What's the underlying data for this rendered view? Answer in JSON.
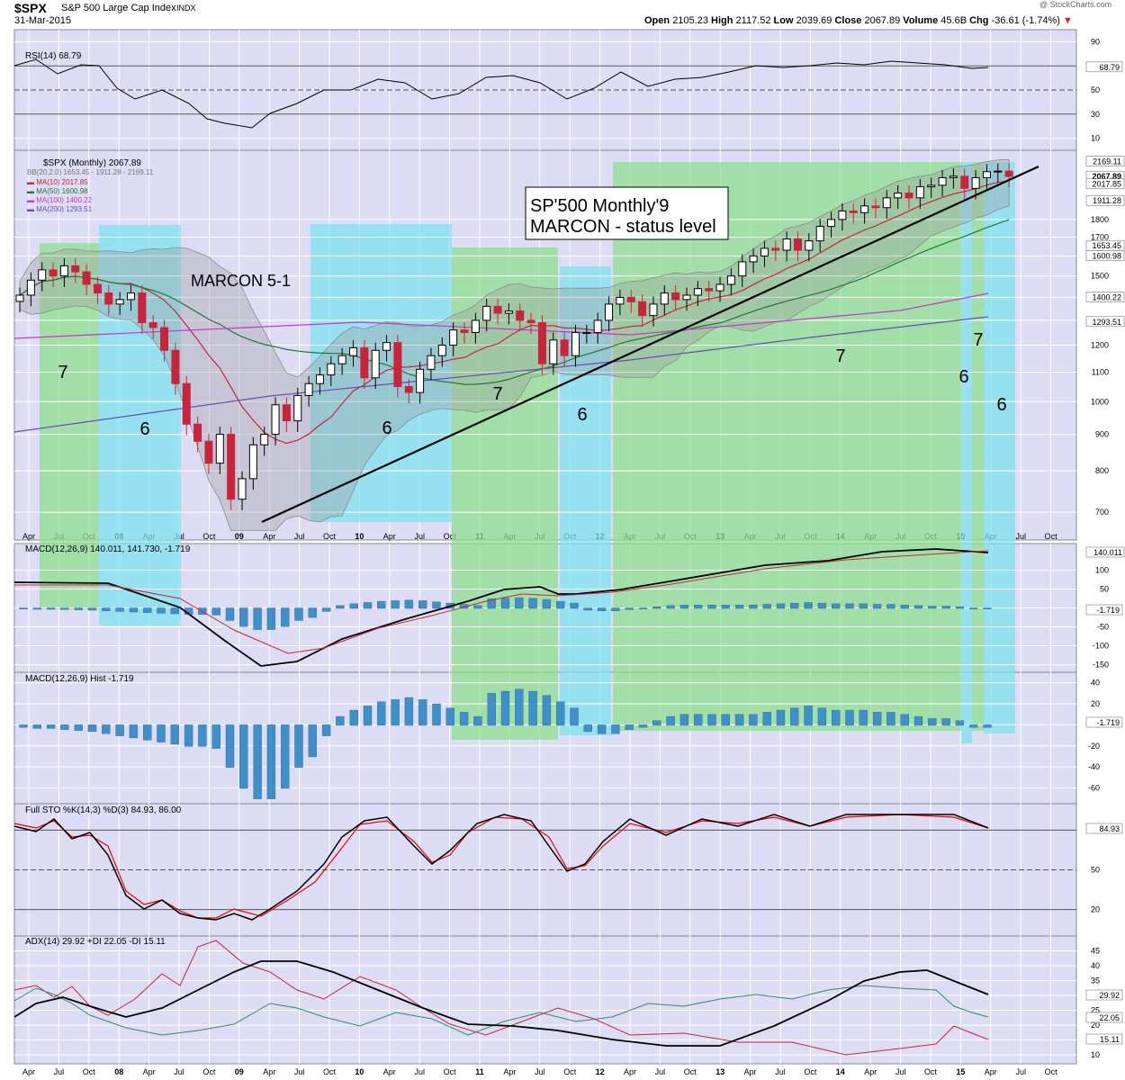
{
  "header": {
    "symbol": "$SPX",
    "name": "S&P 500 Large Cap Index",
    "exchange": "INDX",
    "date": "31-Mar-2015",
    "watermark": "@ StockCharts.com",
    "open_label": "Open",
    "open": "2105.23",
    "high_label": "High",
    "high": "2117.52",
    "low_label": "Low",
    "low": "2039.69",
    "close_label": "Close",
    "close": "2067.89",
    "volume_label": "Volume",
    "volume": "45.6B",
    "chg_label": "Chg",
    "chg": "-36.61 (-1.74%)"
  },
  "colors": {
    "panel_bg": "#dcdcf4",
    "grid": "#ffffff",
    "green_zone": "#8fe08f",
    "blue_zone": "#7fe3ef",
    "up": "#ffffff",
    "down": "#c8243c",
    "macd_hist": "#3f8fc8",
    "ma10": "#c8243c",
    "ma50": "#1f7a3a",
    "ma100": "#cc33cc",
    "ma200": "#6a4cb8",
    "di_plus": "#2e8b6a",
    "di_minus": "#c8243c"
  },
  "chart_data": {
    "type": "candlestick",
    "timeframe": "Monthly",
    "x_labels": [
      "Apr",
      "Jul",
      "Oct",
      "08",
      "Apr",
      "Jul",
      "Oct",
      "09",
      "Apr",
      "Jul",
      "Oct",
      "10",
      "Apr",
      "Jul",
      "Oct",
      "11",
      "Apr",
      "Jul",
      "Oct",
      "12",
      "Apr",
      "Jul",
      "Oct",
      "13",
      "Apr",
      "Jul",
      "Oct",
      "14",
      "Apr",
      "Jul",
      "Oct",
      "15",
      "Apr",
      "Jul",
      "Oct"
    ],
    "price": {
      "title": "$SPX (Monthly) 2067.89",
      "bb_label": "BB(20,2.0) 1653.45 - 1911.28 - 2169.11",
      "ma_labels": [
        {
          "text": "MA(10) 2017.85",
          "color": "#c8243c"
        },
        {
          "text": "MA(50) 1600.98",
          "color": "#1f7a3a"
        },
        {
          "text": "MA(100) 1400.22",
          "color": "#cc33cc"
        },
        {
          "text": "MA(200) 1293.51",
          "color": "#6a4cb8"
        }
      ],
      "y_ticks": [
        "1800",
        "1700",
        "1600",
        "1500",
        "1400",
        "1300",
        "1200",
        "1100",
        "1000",
        "900",
        "800",
        "700"
      ],
      "y_scale": "log",
      "right_labels": [
        {
          "text": "2169.11",
          "v": 2169
        },
        {
          "text": "2067.89",
          "v": 2067,
          "bold": true
        },
        {
          "text": "2017.85",
          "v": 2017
        },
        {
          "text": "1911.28",
          "v": 1911
        },
        {
          "text": "1653.45",
          "v": 1653
        },
        {
          "text": "1600.98",
          "v": 1600
        },
        {
          "text": "1400.22",
          "v": 1400
        },
        {
          "text": "1293.51",
          "v": 1293
        }
      ],
      "closes": [
        1410,
        1480,
        1530,
        1500,
        1550,
        1520,
        1460,
        1420,
        1370,
        1390,
        1420,
        1290,
        1270,
        1180,
        1060,
        930,
        880,
        820,
        900,
        730,
        780,
        870,
        900,
        990,
        940,
        1020,
        1060,
        1090,
        1130,
        1160,
        1190,
        1080,
        1180,
        1210,
        1050,
        1030,
        1110,
        1160,
        1200,
        1260,
        1250,
        1300,
        1360,
        1330,
        1340,
        1300,
        1290,
        1130,
        1220,
        1160,
        1250,
        1250,
        1300,
        1370,
        1400,
        1380,
        1320,
        1370,
        1420,
        1390,
        1410,
        1440,
        1430,
        1460,
        1500,
        1570,
        1600,
        1640,
        1630,
        1690,
        1630,
        1680,
        1760,
        1800,
        1850,
        1840,
        1880,
        1870,
        1930,
        1960,
        1930,
        2000,
        2010,
        2060,
        2070,
        1990,
        2060,
        2100,
        2104,
        2068
      ]
    },
    "annotations": [
      {
        "text": "SP'500 Monthly'9",
        "line": 1
      },
      {
        "text": "MARCON - status level",
        "line": 2
      },
      {
        "text": "MARCON 5-1"
      },
      {
        "text": "7"
      },
      {
        "text": "6"
      },
      {
        "text": "6"
      },
      {
        "text": "7"
      },
      {
        "text": "6"
      },
      {
        "text": "7"
      },
      {
        "text": "7"
      },
      {
        "text": "6"
      },
      {
        "text": "6"
      }
    ],
    "rsi": {
      "label": "RSI(14) 68.79",
      "y_ticks": [
        "90",
        "70",
        "50",
        "30",
        "10"
      ],
      "last": "68.79"
    },
    "macd": {
      "label": "MACD(12,26,9) 140.011, 141.730, -1.719",
      "y_ticks": [
        "100",
        "50",
        "0",
        "-50",
        "-100",
        "-150"
      ],
      "last_macd": "140.011",
      "last_hist": "-1.719"
    },
    "macd_hist": {
      "label": "MACD(12,26,9) Hist -1.719",
      "y_ticks": [
        "40",
        "20",
        "0",
        "-20",
        "-40",
        "-60"
      ],
      "last": "-1.719"
    },
    "sto": {
      "label": "Full STO %K(14,3) %D(3) 84.93, 86.00",
      "y_ticks": [
        "80",
        "50",
        "20"
      ],
      "last": "84.93"
    },
    "adx": {
      "label": "ADX(14) 29.92 +DI 22.05 -DI 15.11",
      "y_ticks": [
        "45",
        "40",
        "35",
        "30",
        "25",
        "20",
        "15",
        "10"
      ],
      "last_adx": "29.92",
      "last_plus": "22.05",
      "last_minus": "15.11"
    }
  }
}
